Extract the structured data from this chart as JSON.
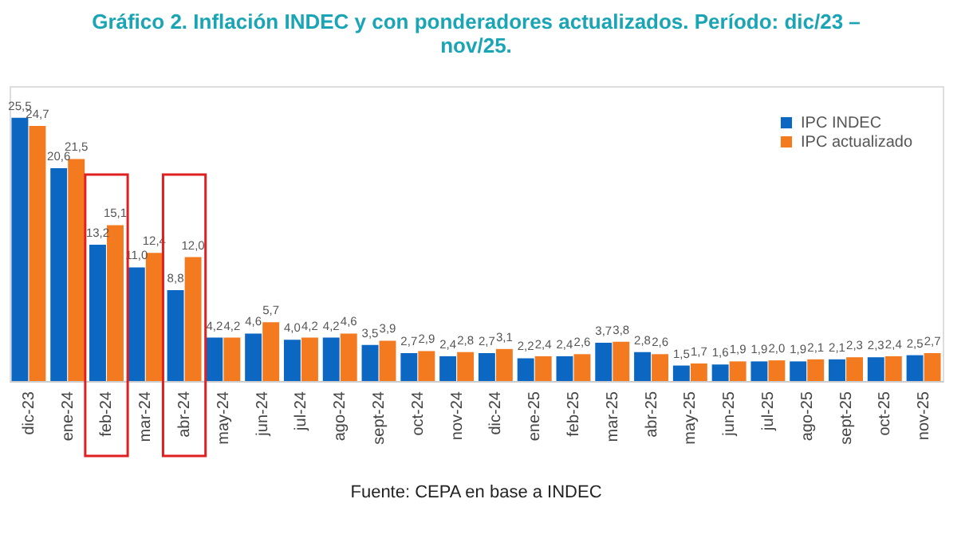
{
  "chart_data": {
    "type": "bar",
    "title": "Gráfico 2. Inflación INDEC y con ponderadores actualizados. Período: dic/23 – nov/25.",
    "categories": [
      "dic-23",
      "ene-24",
      "feb-24",
      "mar-24",
      "abr-24",
      "may-24",
      "jun-24",
      "jul-24",
      "ago-24",
      "sept-24",
      "oct-24",
      "nov-24",
      "dic-24",
      "ene-25",
      "feb-25",
      "mar-25",
      "abr-25",
      "may-25",
      "jun-25",
      "jul-25",
      "ago-25",
      "sept-25",
      "oct-25",
      "nov-25"
    ],
    "series": [
      {
        "name": "IPC INDEC",
        "color": "#0b67c2",
        "values": [
          25.5,
          20.6,
          13.2,
          11.0,
          8.8,
          4.2,
          4.6,
          4.0,
          4.2,
          3.5,
          2.7,
          2.4,
          2.7,
          2.2,
          2.4,
          3.7,
          2.8,
          1.5,
          1.6,
          1.9,
          1.9,
          2.1,
          2.3,
          2.5
        ],
        "value_labels": [
          "25,5",
          "20,6",
          "13,2",
          "11,0",
          "8,8",
          "4,2",
          "4,6",
          "4,0",
          "4,2",
          "3,5",
          "2,7",
          "2,4",
          "2,7",
          "2,2",
          "2,4",
          "3,7",
          "2,8",
          "1,5",
          "1,6",
          "1,9",
          "1,9",
          "2,1",
          "2,3",
          "2,5"
        ]
      },
      {
        "name": "IPC actualizado",
        "color": "#f47a20",
        "values": [
          24.7,
          21.5,
          15.1,
          12.4,
          12.0,
          4.2,
          5.7,
          4.2,
          4.6,
          3.9,
          2.9,
          2.8,
          3.1,
          2.4,
          2.6,
          3.8,
          2.6,
          1.7,
          1.9,
          2.0,
          2.1,
          2.3,
          2.4,
          2.7
        ],
        "value_labels": [
          "24,7",
          "21,5",
          "15,1",
          "12,4",
          "12,0",
          "4,2",
          "5,7",
          "4,2",
          "4,6",
          "3,9",
          "2,9",
          "2,8",
          "3,1",
          "2,4",
          "2,6",
          "3,8",
          "2,6",
          "1,7",
          "1,9",
          "2,0",
          "2,1",
          "2,3",
          "2,4",
          "2,7"
        ]
      }
    ],
    "legend": "top right",
    "grid": false,
    "annotations": [
      "Fuente: CEPA en base a INDEC"
    ]
  }
}
